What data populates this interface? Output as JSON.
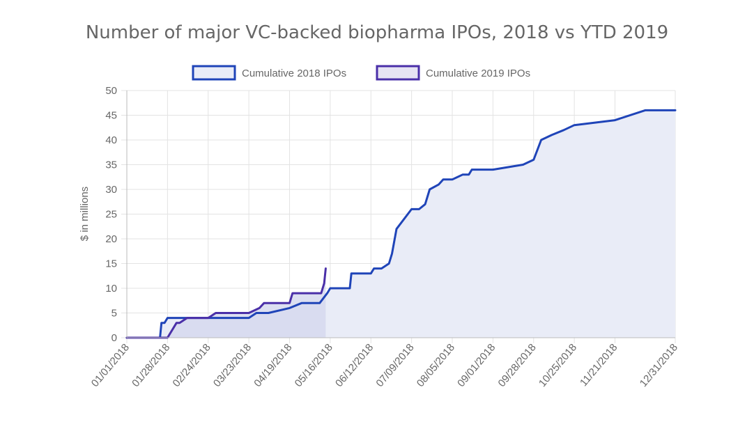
{
  "chart_data": {
    "type": "area",
    "title": "Number of major VC-backed biopharma IPOs, 2018 vs YTD 2019",
    "ylabel": "$ in millions",
    "xlabel": "",
    "ylim": [
      0,
      50
    ],
    "xlim": [
      "01/01/2018",
      "12/31/2018"
    ],
    "yticks": [
      0,
      5,
      10,
      15,
      20,
      25,
      30,
      35,
      40,
      45,
      50
    ],
    "xticks": [
      "01/01/2018",
      "01/28/2018",
      "02/24/2018",
      "03/23/2018",
      "04/19/2018",
      "05/16/2018",
      "06/12/2018",
      "07/09/2018",
      "08/05/2018",
      "09/01/2018",
      "09/28/2018",
      "10/25/2018",
      "11/21/2018",
      "12/31/2018"
    ],
    "grid": true,
    "legend_position": "top",
    "colors": {
      "series_2018_line": "#1f44b8",
      "series_2018_fill": "#e9ecf7",
      "series_2019_line": "#4a2fa8",
      "series_2019_fill": "#d6d9ee",
      "grid": "#e3e3e3",
      "axis": "#bbbbbb"
    },
    "series": [
      {
        "name": "Cumulative 2018 IPOs",
        "x": [
          "01/01/2018",
          "01/23/2018",
          "01/24/2018",
          "01/26/2018",
          "01/28/2018",
          "02/15/2018",
          "02/24/2018",
          "03/01/2018",
          "03/19/2018",
          "03/23/2018",
          "03/28/2018",
          "04/05/2018",
          "04/19/2018",
          "04/27/2018",
          "05/03/2018",
          "05/09/2018",
          "05/14/2018",
          "05/16/2018",
          "05/29/2018",
          "05/30/2018",
          "06/12/2018",
          "06/14/2018",
          "06/19/2018",
          "06/24/2018",
          "06/26/2018",
          "06/29/2018",
          "07/09/2018",
          "07/14/2018",
          "07/18/2018",
          "07/21/2018",
          "07/27/2018",
          "07/30/2018",
          "08/05/2018",
          "08/12/2018",
          "08/16/2018",
          "08/18/2018",
          "09/01/2018",
          "09/21/2018",
          "09/28/2018",
          "10/03/2018",
          "10/10/2018",
          "10/18/2018",
          "10/25/2018",
          "11/21/2018",
          "12/11/2018",
          "12/31/2018"
        ],
        "values": [
          0,
          0,
          3,
          3,
          4,
          4,
          4,
          4,
          4,
          4,
          5,
          5,
          6,
          7,
          7,
          7,
          9,
          10,
          10,
          13,
          13,
          14,
          14,
          15,
          17,
          22,
          26,
          26,
          27,
          30,
          31,
          32,
          32,
          33,
          33,
          34,
          34,
          35,
          36,
          40,
          41,
          42,
          43,
          44,
          46,
          46
        ]
      },
      {
        "name": "Cumulative 2019 IPOs",
        "x": [
          "01/01/2018",
          "01/28/2018",
          "02/03/2018",
          "02/05/2018",
          "02/10/2018",
          "02/14/2018",
          "02/24/2018",
          "03/01/2018",
          "03/23/2018",
          "03/30/2018",
          "04/02/2018",
          "04/19/2018",
          "04/21/2018",
          "04/25/2018",
          "05/10/2018",
          "05/12/2018",
          "05/13/2018"
        ],
        "values": [
          0,
          0,
          3,
          3,
          4,
          4,
          4,
          5,
          5,
          6,
          7,
          7,
          9,
          9,
          9,
          11,
          14
        ]
      }
    ]
  }
}
